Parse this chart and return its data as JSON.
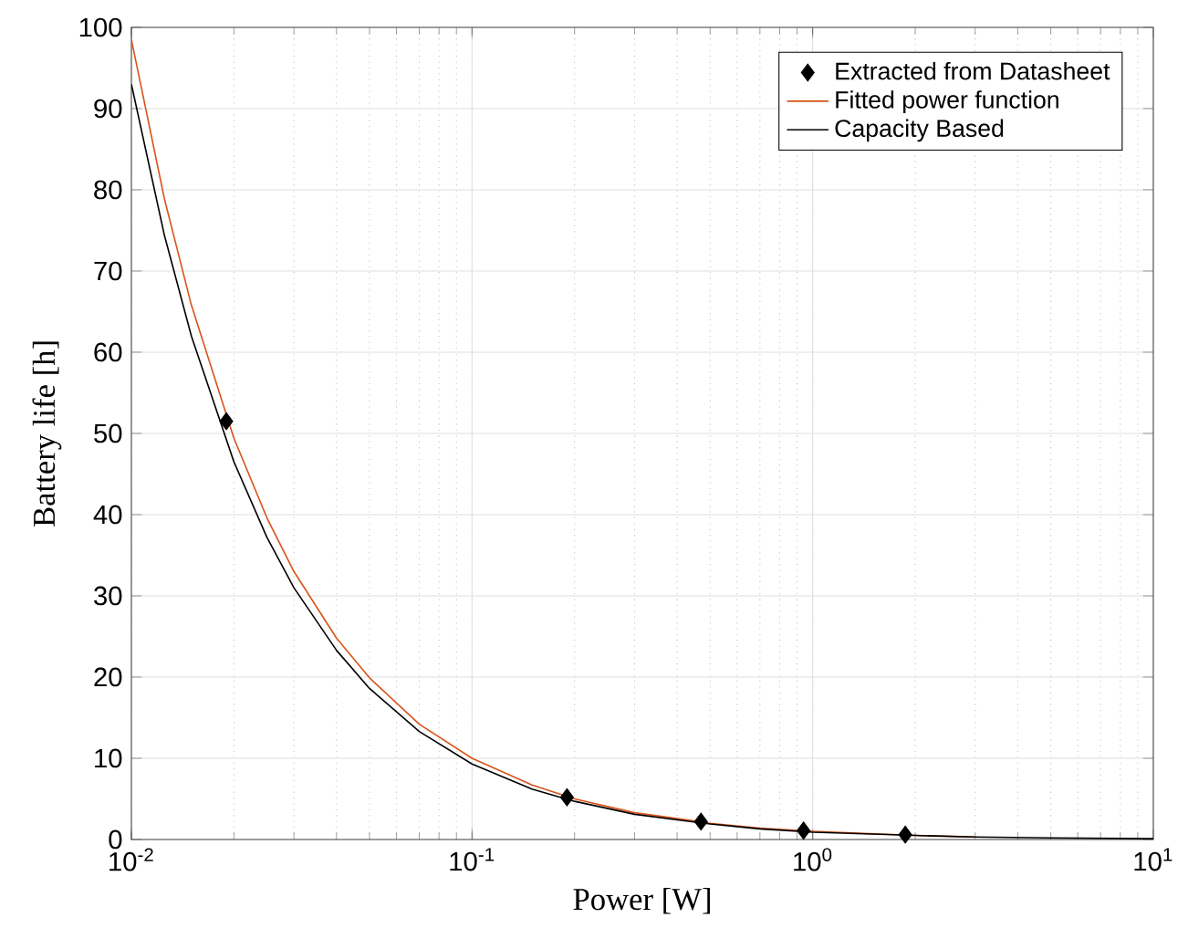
{
  "chart_data": {
    "type": "line",
    "xlabel": "Power [W]",
    "ylabel": "Battery life [h]",
    "log": "x",
    "grid": true,
    "legend": "top right",
    "xlim": [
      0.01,
      10
    ],
    "xticks": [
      {
        "value": 0.01,
        "label": "10$^{-2}$"
      },
      {
        "value": 0.1,
        "label": "10$^{-1}$"
      },
      {
        "value": 1,
        "label": "10$^{0}$"
      },
      {
        "value": 10,
        "label": "10$^{1}$"
      }
    ],
    "ylim": [
      0,
      100
    ],
    "yticks": [
      0,
      10,
      20,
      30,
      40,
      50,
      60,
      70,
      80,
      90,
      100
    ],
    "series": [
      {
        "name": "Extracted from Datasheet",
        "type": "scatter",
        "marker": "diamond",
        "color": "#000000",
        "x": [
          0.019,
          0.19,
          0.47,
          0.94,
          1.87
        ],
        "values": [
          51.5,
          5.2,
          2.2,
          1.1,
          0.6
        ]
      },
      {
        "name": "Fitted power function",
        "marker": "none",
        "color": "#d95319",
        "x": [
          0.01,
          0.0125,
          0.015,
          0.02,
          0.025,
          0.03,
          0.04,
          0.05,
          0.07,
          0.1,
          0.15,
          0.2,
          0.3,
          0.5,
          0.7,
          1,
          2,
          3
        ],
        "values": [
          98.5,
          78.9,
          65.8,
          49.4,
          39.6,
          33,
          24.8,
          19.9,
          14.2,
          10,
          6.7,
          5,
          3.3,
          2,
          1.4,
          1,
          0.5,
          0.3
        ]
      },
      {
        "name": "Capacity Based",
        "marker": "none",
        "color": "#000000",
        "x": [
          0.01,
          0.0125,
          0.015,
          0.02,
          0.025,
          0.03,
          0.04,
          0.05,
          0.07,
          0.1,
          0.15,
          0.2,
          0.3,
          0.5,
          0.7,
          1,
          2,
          3,
          5,
          10
        ],
        "values": [
          93,
          74.4,
          62,
          46.5,
          37.2,
          31,
          23.3,
          18.6,
          13.3,
          9.3,
          6.2,
          4.7,
          3.1,
          1.9,
          1.3,
          0.9,
          0.5,
          0.3,
          0.2,
          0.1
        ]
      }
    ]
  }
}
